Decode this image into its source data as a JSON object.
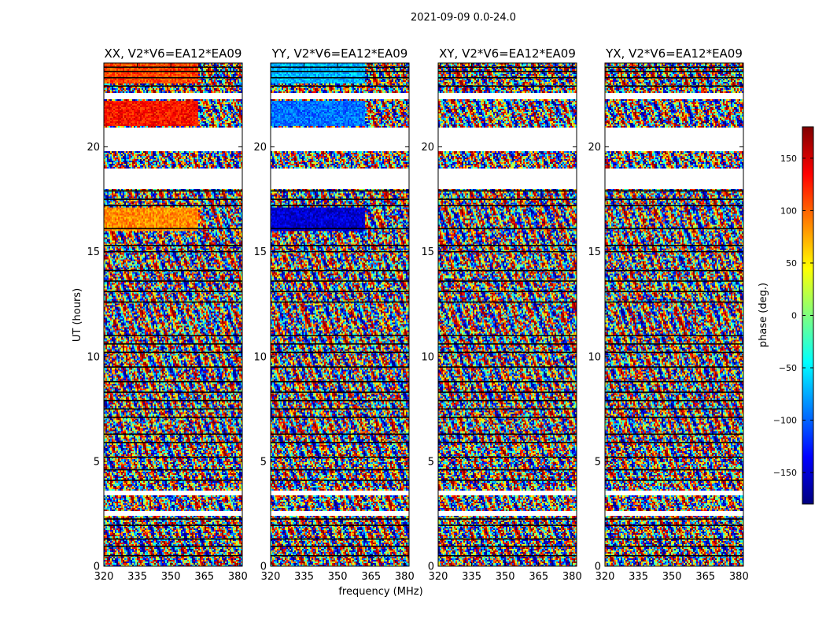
{
  "chart_data": {
    "type": "heatmap",
    "title": "2021-09-09 0.0-24.0",
    "xlabel": "frequency (MHz)",
    "ylabel": "UT (hours)",
    "xlim": [
      320,
      382
    ],
    "ylim": [
      0,
      24
    ],
    "x_ticks": [
      320,
      335,
      350,
      365,
      380
    ],
    "y_ticks": [
      0,
      5,
      10,
      15,
      20
    ],
    "grid": false,
    "colorbar": {
      "label": "phase (deg.)",
      "range": [
        -180,
        180
      ],
      "ticks": [
        150,
        100,
        50,
        0,
        -50,
        -100,
        -150
      ],
      "tick_labels": [
        "150",
        "100",
        "50",
        "0",
        "−50",
        "−100",
        "−150"
      ],
      "colormap": "jet",
      "colors": [
        "#00007f",
        "#0000ff",
        "#007fff",
        "#00ffff",
        "#7fff7f",
        "#ffff00",
        "#ff7f00",
        "#ff0000",
        "#7f0000"
      ]
    },
    "blank_intervals_hours": [
      [
        2.4,
        2.6
      ],
      [
        3.4,
        3.6
      ],
      [
        18.0,
        19.0
      ],
      [
        19.8,
        20.9
      ],
      [
        22.3,
        22.6
      ]
    ],
    "separator_lines_hours": [
      0.5,
      0.95,
      1.3,
      1.95,
      2.25,
      4.1,
      4.6,
      5.2,
      5.9,
      6.3,
      7.1,
      7.5,
      7.9,
      8.3,
      8.8,
      9.5,
      10.2,
      10.6,
      11.0,
      12.6,
      13.1,
      13.6,
      14.1,
      15.0,
      15.3,
      16.1,
      17.2,
      17.5,
      17.9,
      22.9,
      23.3,
      23.6,
      23.8
    ],
    "panels": [
      {
        "title": "XX, V2*V6=EA12*EA09",
        "seed": 11,
        "coherent_bands": [
          {
            "t0": 21.0,
            "t1": 22.2,
            "f0": 320,
            "f1": 362,
            "phase": 130
          },
          {
            "t0": 16.0,
            "t1": 17.1,
            "f0": 320,
            "f1": 362,
            "phase": 85
          },
          {
            "t0": 23.0,
            "t1": 24.0,
            "f0": 320,
            "f1": 362,
            "phase": 110
          }
        ]
      },
      {
        "title": "YY, V2*V6=EA12*EA09",
        "seed": 23,
        "coherent_bands": [
          {
            "t0": 21.0,
            "t1": 22.2,
            "f0": 320,
            "f1": 362,
            "phase": -95
          },
          {
            "t0": 16.0,
            "t1": 17.1,
            "f0": 320,
            "f1": 362,
            "phase": -150
          },
          {
            "t0": 23.0,
            "t1": 24.0,
            "f0": 320,
            "f1": 362,
            "phase": -70
          }
        ]
      },
      {
        "title": "XY, V2*V6=EA12*EA09",
        "seed": 37,
        "coherent_bands": []
      },
      {
        "title": "YX, V2*V6=EA12*EA09",
        "seed": 51,
        "coherent_bands": []
      }
    ]
  }
}
